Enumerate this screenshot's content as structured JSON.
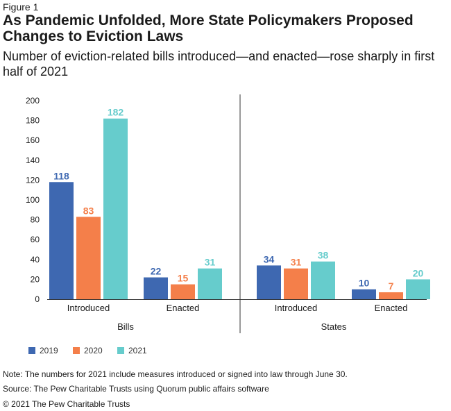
{
  "figure_label": "Figure 1",
  "title": "As Pandemic Unfolded, More State Policymakers Proposed Changes to Eviction Laws",
  "subtitle": "Number of eviction-related bills introduced—and enacted—rose sharply in first half of 2021",
  "note": "Note: The numbers for 2021 include measures introduced or signed into law through June 30.",
  "source": "Source: The Pew Charitable Trusts using Quorum public affairs software",
  "copyright": "© 2021 The Pew Charitable Trusts",
  "chart_data": {
    "type": "bar",
    "ylim": [
      0,
      200
    ],
    "yticks": [
      "0",
      "20",
      "40",
      "60",
      "80",
      "100",
      "120",
      "140",
      "160",
      "180",
      "200"
    ],
    "grid": false,
    "legend_position": "bottom-left",
    "colors": {
      "2019": "#3e68b1",
      "2020": "#f47f4a",
      "2021": "#66cccc"
    },
    "groups": [
      {
        "label": "Bills",
        "categories": [
          "Introduced",
          "Enacted"
        ],
        "series": [
          {
            "name": "2019",
            "values": [
              118,
              22
            ]
          },
          {
            "name": "2020",
            "values": [
              83,
              15
            ]
          },
          {
            "name": "2021",
            "values": [
              182,
              31
            ]
          }
        ]
      },
      {
        "label": "States",
        "categories": [
          "Introduced",
          "Enacted"
        ],
        "series": [
          {
            "name": "2019",
            "values": [
              34,
              10
            ]
          },
          {
            "name": "2020",
            "values": [
              31,
              7
            ]
          },
          {
            "name": "2021",
            "values": [
              38,
              20
            ]
          }
        ]
      }
    ],
    "legend": [
      "2019",
      "2020",
      "2021"
    ]
  }
}
